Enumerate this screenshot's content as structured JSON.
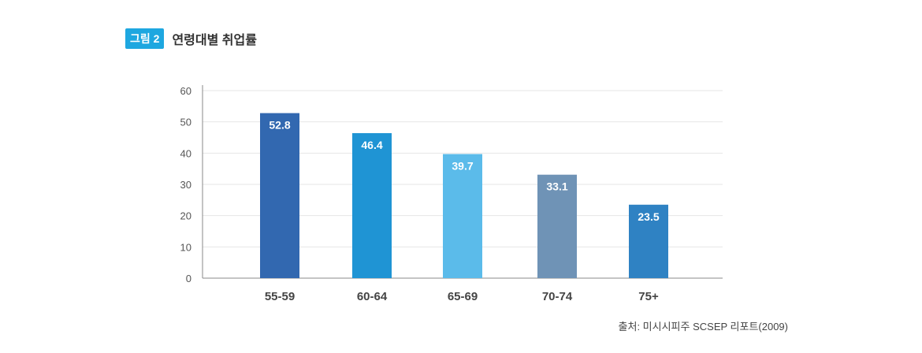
{
  "figure": {
    "badge": "그림 2",
    "title": "연령대별 취업률"
  },
  "source": "출처: 미시시피주 SCSEP 리포트(2009)",
  "chart_data": {
    "type": "bar",
    "title": "연령대별 취업률",
    "categories": [
      "55-59",
      "60-64",
      "65-69",
      "70-74",
      "75+"
    ],
    "values": [
      52.8,
      46.4,
      39.7,
      33.1,
      23.5
    ],
    "data_labels": [
      "52.8",
      "46.4",
      "39.7",
      "33.1",
      "23.5"
    ],
    "colors": [
      "#3268b0",
      "#1f94d4",
      "#5bbbea",
      "#6f93b6",
      "#2f82c3"
    ],
    "yticks": [
      "0",
      "10",
      "20",
      "30",
      "40",
      "50",
      "60"
    ],
    "ylim": [
      0,
      60
    ],
    "grid": true,
    "xlabel": "",
    "ylabel": ""
  }
}
